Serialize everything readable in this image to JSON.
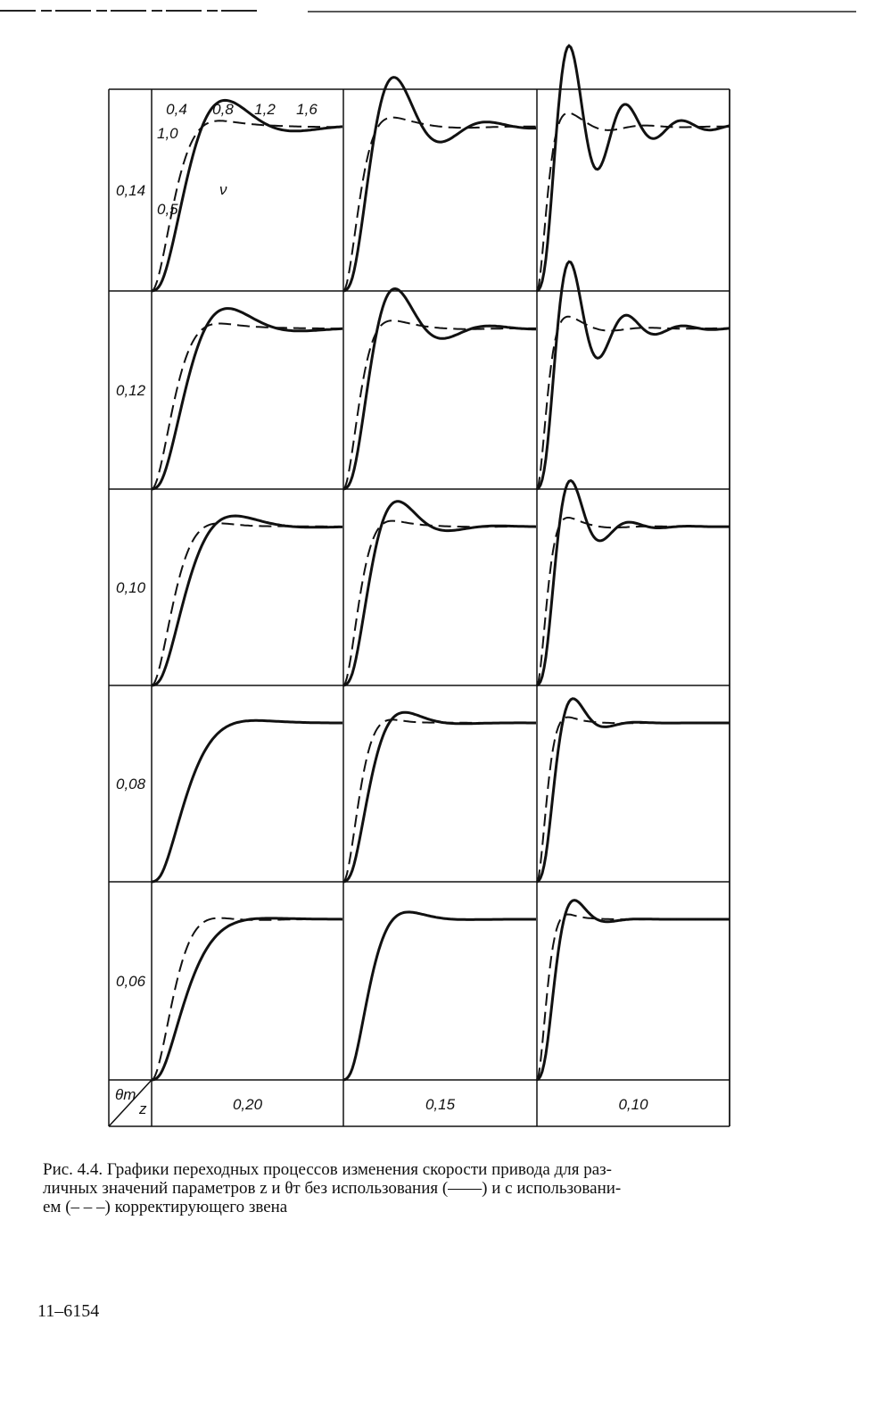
{
  "figure": {
    "row_labels": [
      "0,14",
      "0,12",
      "0,10",
      "0,08",
      "0,06"
    ],
    "column_labels": [
      "0,20",
      "0,15",
      "0,10"
    ],
    "corner": {
      "row_symbol": "θт",
      "column_symbol": "z"
    },
    "inset_axis": {
      "x_ticks": [
        "0,4",
        "0,8",
        "1,2",
        "1,6"
      ],
      "y_ticks": [
        "1,0",
        "0,5"
      ],
      "curve_label": "ν"
    }
  },
  "caption": {
    "lines": [
      "Рис. 4.4. Графики переходных процессов изменения скорости привода для раз-",
      "личных значений параметров z и θт без использования (——) и с использовани-",
      "ем (– – –) корректирующего звена"
    ]
  },
  "page_number": "11–6154"
}
